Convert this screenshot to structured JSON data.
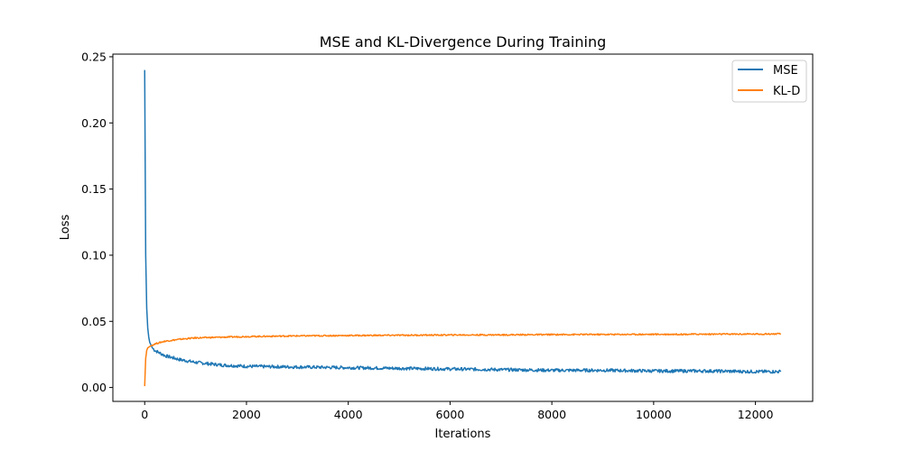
{
  "chart_data": {
    "type": "line",
    "title": "MSE and KL-Divergence During Training",
    "xlabel": "Iterations",
    "ylabel": "Loss",
    "xlim": [
      -625,
      13125
    ],
    "ylim": [
      -0.0105,
      0.252
    ],
    "x_ticks": [
      0,
      2000,
      4000,
      6000,
      8000,
      10000,
      12000
    ],
    "x_tick_labels": [
      "0",
      "2000",
      "4000",
      "6000",
      "8000",
      "10000",
      "12000"
    ],
    "y_ticks": [
      0.0,
      0.05,
      0.1,
      0.15,
      0.2,
      0.25
    ],
    "y_tick_labels": [
      "0.00",
      "0.05",
      "0.10",
      "0.15",
      "0.20",
      "0.25"
    ],
    "grid": false,
    "legend": {
      "placement": "top-right"
    },
    "series": [
      {
        "name": "MSE",
        "color": "#1f77b4",
        "x": [
          0,
          10,
          20,
          40,
          60,
          80,
          100,
          150,
          200,
          300,
          400,
          500,
          700,
          1000,
          1500,
          2000,
          3000,
          4000,
          5000,
          6000,
          7000,
          8000,
          9000,
          10000,
          11000,
          12000,
          12500
        ],
        "values": [
          0.24,
          0.17,
          0.1,
          0.06,
          0.045,
          0.038,
          0.034,
          0.03,
          0.028,
          0.026,
          0.024,
          0.023,
          0.021,
          0.019,
          0.017,
          0.016,
          0.0155,
          0.015,
          0.0145,
          0.014,
          0.0135,
          0.013,
          0.013,
          0.0125,
          0.0125,
          0.012,
          0.012
        ]
      },
      {
        "name": "KL-D",
        "color": "#ff7f0e",
        "x": [
          0,
          10,
          20,
          40,
          60,
          80,
          100,
          150,
          200,
          300,
          400,
          500,
          700,
          1000,
          1500,
          2000,
          3000,
          4000,
          5000,
          6000,
          7000,
          8000,
          9000,
          10000,
          11000,
          12000,
          12500
        ],
        "values": [
          0.001,
          0.012,
          0.022,
          0.028,
          0.03,
          0.0305,
          0.031,
          0.032,
          0.033,
          0.034,
          0.035,
          0.0355,
          0.0365,
          0.0375,
          0.038,
          0.0385,
          0.039,
          0.0393,
          0.0395,
          0.0397,
          0.0398,
          0.04,
          0.0401,
          0.0402,
          0.0403,
          0.0404,
          0.0405
        ]
      }
    ]
  }
}
